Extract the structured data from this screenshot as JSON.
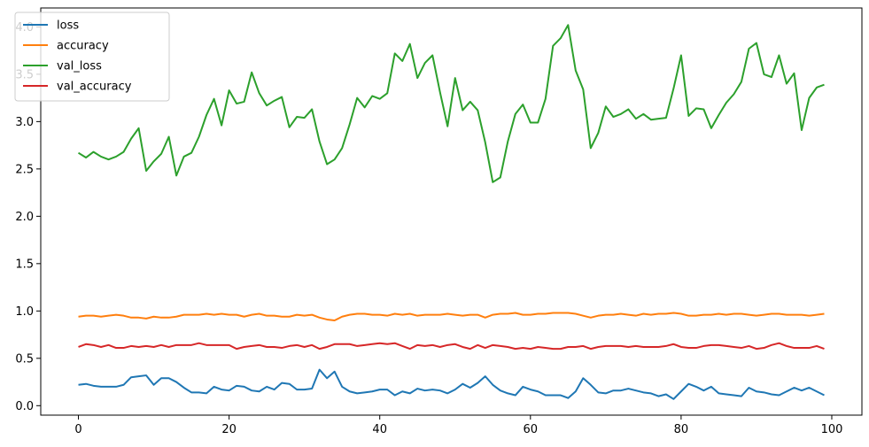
{
  "chart_data": {
    "type": "line",
    "title": "",
    "xlabel": "",
    "ylabel": "",
    "xlim": [
      -5,
      104
    ],
    "ylim": [
      -0.1,
      4.2
    ],
    "grid": false,
    "legend_position": "top-left",
    "x_ticks": [
      0,
      20,
      40,
      60,
      80,
      100
    ],
    "y_ticks": [
      0.0,
      0.5,
      1.0,
      1.5,
      2.0,
      2.5,
      3.0,
      3.5,
      4.0
    ],
    "x_tick_labels": [
      "0",
      "20",
      "40",
      "60",
      "80",
      "100"
    ],
    "y_tick_labels": [
      "0.0",
      "0.5",
      "1.0",
      "1.5",
      "2.0",
      "2.5",
      "3.0",
      "3.5",
      "4.0"
    ],
    "x": [
      0,
      1,
      2,
      3,
      4,
      5,
      6,
      7,
      8,
      9,
      10,
      11,
      12,
      13,
      14,
      15,
      16,
      17,
      18,
      19,
      20,
      21,
      22,
      23,
      24,
      25,
      26,
      27,
      28,
      29,
      30,
      31,
      32,
      33,
      34,
      35,
      36,
      37,
      38,
      39,
      40,
      41,
      42,
      43,
      44,
      45,
      46,
      47,
      48,
      49,
      50,
      51,
      52,
      53,
      54,
      55,
      56,
      57,
      58,
      59,
      60,
      61,
      62,
      63,
      64,
      65,
      66,
      67,
      68,
      69,
      70,
      71,
      72,
      73,
      74,
      75,
      76,
      77,
      78,
      79,
      80,
      81,
      82,
      83,
      84,
      85,
      86,
      87,
      88,
      89,
      90,
      91,
      92,
      93,
      94,
      95,
      96,
      97,
      98,
      99
    ],
    "series": [
      {
        "name": "loss",
        "color": "#1f77b4",
        "values": [
          0.22,
          0.23,
          0.21,
          0.2,
          0.2,
          0.2,
          0.22,
          0.3,
          0.31,
          0.32,
          0.22,
          0.29,
          0.29,
          0.25,
          0.19,
          0.14,
          0.14,
          0.13,
          0.2,
          0.17,
          0.16,
          0.21,
          0.2,
          0.16,
          0.15,
          0.2,
          0.17,
          0.24,
          0.23,
          0.17,
          0.17,
          0.18,
          0.38,
          0.29,
          0.36,
          0.2,
          0.15,
          0.13,
          0.14,
          0.15,
          0.17,
          0.17,
          0.11,
          0.15,
          0.13,
          0.18,
          0.16,
          0.17,
          0.16,
          0.13,
          0.17,
          0.23,
          0.19,
          0.24,
          0.31,
          0.22,
          0.16,
          0.13,
          0.11,
          0.2,
          0.17,
          0.15,
          0.11,
          0.11,
          0.11,
          0.08,
          0.15,
          0.29,
          0.22,
          0.14,
          0.13,
          0.16,
          0.16,
          0.18,
          0.16,
          0.14,
          0.13,
          0.1,
          0.12,
          0.07,
          0.15,
          0.23,
          0.2,
          0.16,
          0.2,
          0.13,
          0.12,
          0.11,
          0.1,
          0.19,
          0.15,
          0.14,
          0.12,
          0.11,
          0.15,
          0.19,
          0.16,
          0.19,
          0.15,
          0.11
        ]
      },
      {
        "name": "accuracy",
        "color": "#ff7f0e",
        "values": [
          0.94,
          0.95,
          0.95,
          0.94,
          0.95,
          0.96,
          0.95,
          0.93,
          0.93,
          0.92,
          0.94,
          0.93,
          0.93,
          0.94,
          0.96,
          0.96,
          0.96,
          0.97,
          0.96,
          0.97,
          0.96,
          0.96,
          0.94,
          0.96,
          0.97,
          0.95,
          0.95,
          0.94,
          0.94,
          0.96,
          0.95,
          0.96,
          0.93,
          0.91,
          0.9,
          0.94,
          0.96,
          0.97,
          0.97,
          0.96,
          0.96,
          0.95,
          0.97,
          0.96,
          0.97,
          0.95,
          0.96,
          0.96,
          0.96,
          0.97,
          0.96,
          0.95,
          0.96,
          0.96,
          0.93,
          0.96,
          0.97,
          0.97,
          0.98,
          0.96,
          0.96,
          0.97,
          0.97,
          0.98,
          0.98,
          0.98,
          0.97,
          0.95,
          0.93,
          0.95,
          0.96,
          0.96,
          0.97,
          0.96,
          0.95,
          0.97,
          0.96,
          0.97,
          0.97,
          0.98,
          0.97,
          0.95,
          0.95,
          0.96,
          0.96,
          0.97,
          0.96,
          0.97,
          0.97,
          0.96,
          0.95,
          0.96,
          0.97,
          0.97,
          0.96,
          0.96,
          0.96,
          0.95,
          0.96,
          0.97
        ]
      },
      {
        "name": "val_loss",
        "color": "#2ca02c",
        "values": [
          2.67,
          2.62,
          2.68,
          2.63,
          2.6,
          2.63,
          2.68,
          2.82,
          2.93,
          2.48,
          2.58,
          2.66,
          2.84,
          2.43,
          2.63,
          2.67,
          2.84,
          3.07,
          3.24,
          2.96,
          3.33,
          3.19,
          3.21,
          3.52,
          3.3,
          3.17,
          3.22,
          3.26,
          2.94,
          3.05,
          3.04,
          3.13,
          2.79,
          2.55,
          2.6,
          2.72,
          2.97,
          3.25,
          3.15,
          3.27,
          3.24,
          3.3,
          3.72,
          3.64,
          3.82,
          3.46,
          3.62,
          3.7,
          3.31,
          2.95,
          3.46,
          3.12,
          3.21,
          3.12,
          2.78,
          2.36,
          2.41,
          2.79,
          3.08,
          3.18,
          2.99,
          2.99,
          3.24,
          3.8,
          3.88,
          4.02,
          3.54,
          3.34,
          2.72,
          2.88,
          3.16,
          3.05,
          3.08,
          3.13,
          3.03,
          3.08,
          3.02,
          3.03,
          3.04,
          3.35,
          3.7,
          3.06,
          3.14,
          3.13,
          2.93,
          3.07,
          3.2,
          3.29,
          3.42,
          3.77,
          3.83,
          3.5,
          3.47,
          3.7,
          3.4,
          3.51,
          2.91,
          3.25,
          3.36,
          3.39
        ]
      },
      {
        "name": "val_accuracy",
        "color": "#d62728",
        "values": [
          0.62,
          0.65,
          0.64,
          0.62,
          0.64,
          0.61,
          0.61,
          0.63,
          0.62,
          0.63,
          0.62,
          0.64,
          0.62,
          0.64,
          0.64,
          0.64,
          0.66,
          0.64,
          0.64,
          0.64,
          0.64,
          0.6,
          0.62,
          0.63,
          0.64,
          0.62,
          0.62,
          0.61,
          0.63,
          0.64,
          0.62,
          0.64,
          0.6,
          0.62,
          0.65,
          0.65,
          0.65,
          0.63,
          0.64,
          0.65,
          0.66,
          0.65,
          0.66,
          0.63,
          0.6,
          0.64,
          0.63,
          0.64,
          0.62,
          0.64,
          0.65,
          0.62,
          0.6,
          0.64,
          0.61,
          0.64,
          0.63,
          0.62,
          0.6,
          0.61,
          0.6,
          0.62,
          0.61,
          0.6,
          0.6,
          0.62,
          0.62,
          0.63,
          0.6,
          0.62,
          0.63,
          0.63,
          0.63,
          0.62,
          0.63,
          0.62,
          0.62,
          0.62,
          0.63,
          0.65,
          0.62,
          0.61,
          0.61,
          0.63,
          0.64,
          0.64,
          0.63,
          0.62,
          0.61,
          0.63,
          0.6,
          0.61,
          0.64,
          0.66,
          0.63,
          0.61,
          0.61,
          0.61,
          0.63,
          0.6
        ]
      }
    ]
  }
}
